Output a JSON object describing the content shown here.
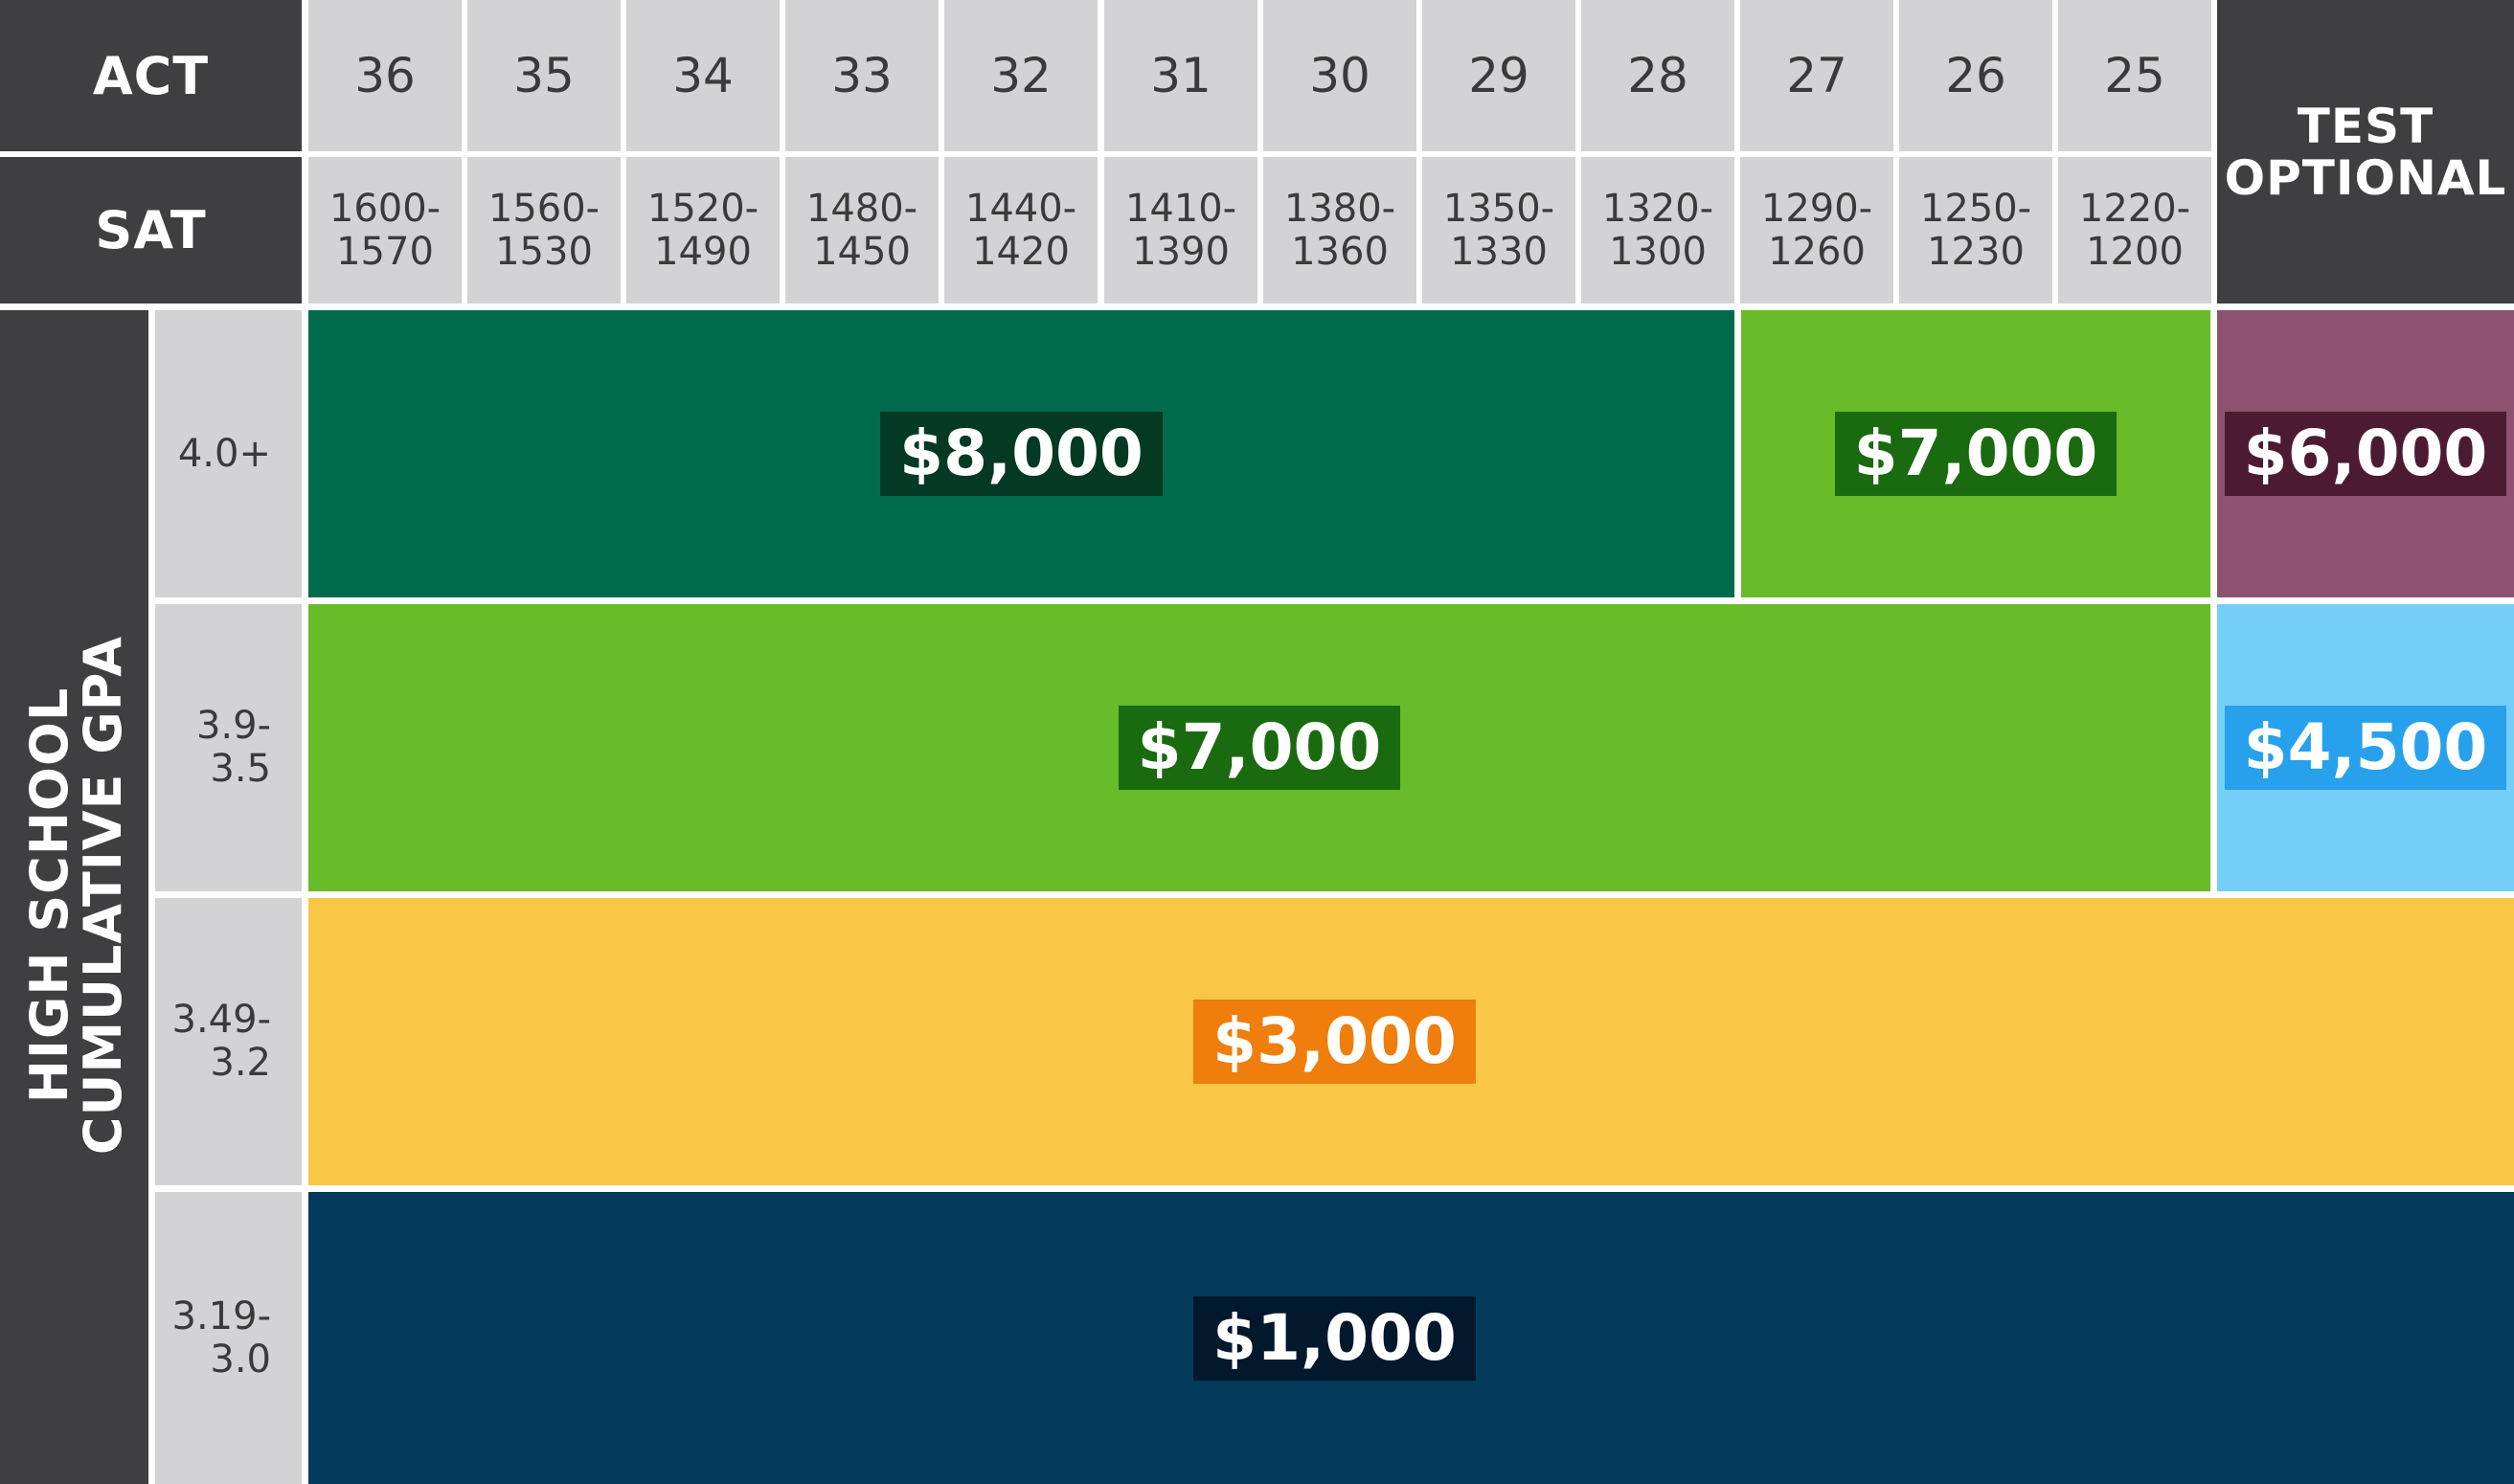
{
  "header": {
    "act_label": "ACT",
    "sat_label": "SAT",
    "test_optional_label": "TEST\nOPTIONAL",
    "gpa_axis_label": "HIGH SCHOOL\nCUMULATIVE GPA"
  },
  "act_scores": [
    "36",
    "35",
    "34",
    "33",
    "32",
    "31",
    "30",
    "29",
    "28",
    "27",
    "26",
    "25"
  ],
  "sat_ranges": [
    "1600-\n1570",
    "1560-\n1530",
    "1520-\n1490",
    "1480-\n1450",
    "1440-\n1420",
    "1410-\n1390",
    "1380-\n1360",
    "1350-\n1330",
    "1320-\n1300",
    "1290-\n1260",
    "1250-\n1230",
    "1220-\n1200"
  ],
  "gpa_rows": [
    "4.0+",
    "3.9-\n3.5",
    "3.49-\n3.2",
    "3.19-\n3.0"
  ],
  "awards": {
    "row1_high": "$8,000",
    "row1_mid": "$7,000",
    "row1_optional": "$6,000",
    "row2_scores": "$7,000",
    "row2_optional": "$4,500",
    "row3_all": "$3,000",
    "row4_all": "$1,000"
  },
  "colors": {
    "dark_green": "#006b4b",
    "dark_green_badge": "#043a24",
    "lime": "#68bb29",
    "lime_badge": "#1a6a10",
    "plum": "#8d5270",
    "plum_badge": "#4c1b31",
    "sky": "#76cff8",
    "sky_badge": "#27a1ec",
    "yellow": "#f9c646",
    "orange_badge": "#f07e0c",
    "navy": "#043a5b",
    "navy_badge": "#02182d",
    "header_dark": "#3f3f41",
    "header_grey": "#d3d3d5"
  }
}
